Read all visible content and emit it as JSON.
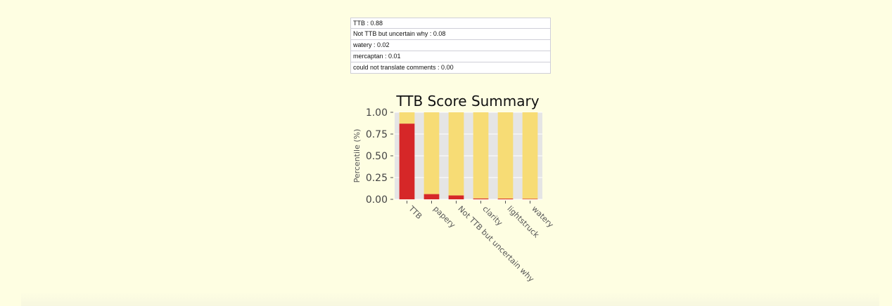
{
  "scores": [
    {
      "label": "TTB : 0.88"
    },
    {
      "label": "Not TTB but uncertain why : 0.08"
    },
    {
      "label": "watery : 0.02"
    },
    {
      "label": "mercaptan : 0.01"
    },
    {
      "label": "could not translate comments : 0.00"
    }
  ],
  "chart_data": {
    "type": "bar",
    "stacked": true,
    "title": "TTB Score Summary",
    "xlabel": "",
    "ylabel": "Percentile (%)",
    "ylim": [
      0,
      1
    ],
    "yticks": [
      "0.00",
      "0.25",
      "0.50",
      "0.75",
      "1.00"
    ],
    "ytick_values": [
      0,
      0.25,
      0.5,
      0.75,
      1.0
    ],
    "categories": [
      "TTB",
      "papery",
      "Not TTB but uncertain why",
      "clarity",
      "lightstruck",
      "watery"
    ],
    "series": [
      {
        "values": [
          0.87,
          0.06,
          0.045,
          0.01,
          0.008,
          0.006
        ],
        "color": "#d62728"
      },
      {
        "values": [
          0.13,
          0.94,
          0.955,
          0.99,
          0.992,
          0.994
        ],
        "color": "#f7dc75"
      }
    ],
    "grid": true,
    "background": "#e5e5e5"
  }
}
